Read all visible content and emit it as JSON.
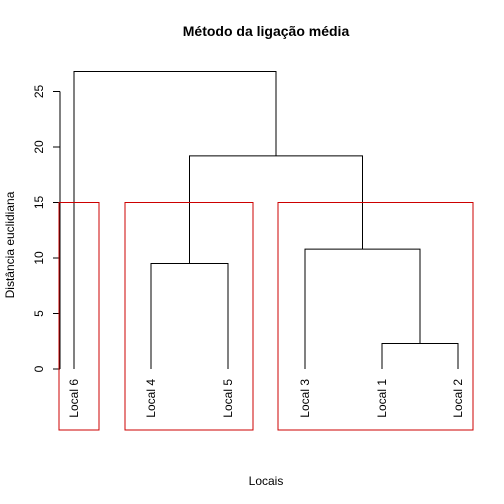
{
  "chart_data": {
    "type": "dendrogram",
    "title": "Método da ligação média",
    "xlabel": "Locais",
    "ylabel": "Distância euclidiana",
    "ylim": [
      0,
      27
    ],
    "yticks": [
      0,
      5,
      10,
      15,
      20,
      25
    ],
    "leaves": [
      "Local 6",
      "Local 4",
      "Local 5",
      "Local 3",
      "Local 1",
      "Local 2"
    ],
    "merges": [
      {
        "left": "Local 1",
        "right": "Local 2",
        "height": 2.3
      },
      {
        "left": "Local 4",
        "right": "Local 5",
        "height": 9.5
      },
      {
        "left": "Local 3",
        "right": "Local 1 + Local 2",
        "height": 10.8
      },
      {
        "left": "Local 4 + Local 5",
        "right": "Local 3 + Local 1 + Local 2",
        "height": 19.2
      },
      {
        "left": "Local 6",
        "right": "Local 4 + Local 5 + Local 3 + Local 1 + Local 2",
        "height": 26.8
      }
    ],
    "cut_height": 15,
    "clusters": [
      [
        "Local 6"
      ],
      [
        "Local 4",
        "Local 5"
      ],
      [
        "Local 3",
        "Local 1",
        "Local 2"
      ]
    ],
    "colors": {
      "tree": "#000000",
      "cluster_box": "#cc0000"
    }
  }
}
